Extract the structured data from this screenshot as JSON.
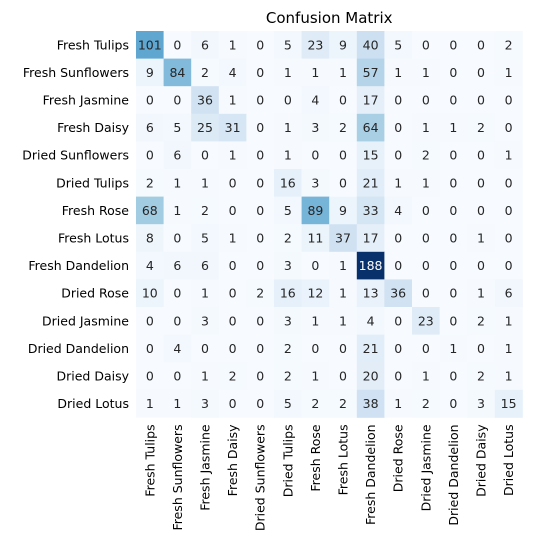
{
  "chart_data": {
    "type": "heatmap",
    "title": "Confusion Matrix",
    "xlabel": "",
    "ylabel": "",
    "row_labels": [
      "Fresh Tulips",
      "Fresh Sunflowers",
      "Fresh Jasmine",
      "Fresh Daisy",
      "Dried Sunflowers",
      "Dried Tulips",
      "Fresh Rose",
      "Fresh Lotus",
      "Fresh Dandelion",
      "Dried Rose",
      "Dried Jasmine",
      "Dried Dandelion",
      "Dried Daisy",
      "Dried Lotus"
    ],
    "col_labels": [
      "Fresh Tulips",
      "Fresh Sunflowers",
      "Fresh Jasmine",
      "Fresh Daisy",
      "Dried Sunflowers",
      "Dried Tulips",
      "Fresh Rose",
      "Fresh Lotus",
      "Fresh Dandelion",
      "Dried Rose",
      "Dried Jasmine",
      "Dried Dandelion",
      "Dried Daisy",
      "Dried Lotus"
    ],
    "values": [
      [
        101,
        0,
        6,
        1,
        0,
        5,
        23,
        9,
        40,
        5,
        0,
        0,
        0,
        2
      ],
      [
        9,
        84,
        2,
        4,
        0,
        1,
        1,
        1,
        57,
        1,
        1,
        0,
        0,
        1
      ],
      [
        0,
        0,
        36,
        1,
        0,
        0,
        4,
        0,
        17,
        0,
        0,
        0,
        0,
        0
      ],
      [
        6,
        5,
        25,
        31,
        0,
        1,
        3,
        2,
        64,
        0,
        1,
        1,
        2,
        0
      ],
      [
        0,
        6,
        0,
        1,
        0,
        1,
        0,
        0,
        15,
        0,
        2,
        0,
        0,
        1
      ],
      [
        2,
        1,
        1,
        0,
        0,
        16,
        3,
        0,
        21,
        1,
        1,
        0,
        0,
        0
      ],
      [
        68,
        1,
        2,
        0,
        0,
        5,
        89,
        9,
        33,
        4,
        0,
        0,
        0,
        0
      ],
      [
        8,
        0,
        5,
        1,
        0,
        2,
        11,
        37,
        17,
        0,
        0,
        0,
        1,
        0
      ],
      [
        4,
        6,
        6,
        0,
        0,
        3,
        0,
        1,
        188,
        0,
        0,
        0,
        0,
        0
      ],
      [
        10,
        0,
        1,
        0,
        2,
        16,
        12,
        1,
        13,
        36,
        0,
        0,
        1,
        6
      ],
      [
        0,
        0,
        3,
        0,
        0,
        3,
        1,
        1,
        4,
        0,
        23,
        0,
        2,
        1
      ],
      [
        0,
        4,
        0,
        0,
        0,
        2,
        0,
        0,
        21,
        0,
        0,
        1,
        0,
        1
      ],
      [
        0,
        0,
        1,
        2,
        0,
        2,
        1,
        0,
        20,
        0,
        1,
        0,
        2,
        1
      ],
      [
        1,
        1,
        3,
        0,
        0,
        5,
        2,
        2,
        38,
        1,
        2,
        0,
        3,
        15
      ]
    ],
    "colormap": "Blues",
    "vmin": 0,
    "vmax": 188,
    "colorbar": false,
    "grid": false,
    "colors": {
      "low": "#f7fbff",
      "high": "#08306b",
      "text_dark": "#262626",
      "text_light": "#ffffff"
    }
  }
}
